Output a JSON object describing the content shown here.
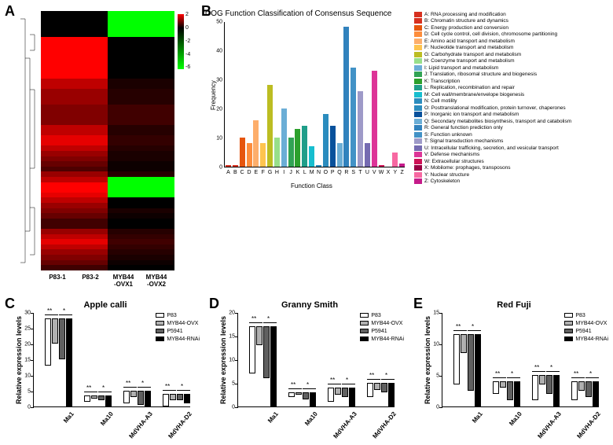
{
  "panel_labels": {
    "A": "A",
    "B": "B",
    "C": "C",
    "D": "D",
    "E": "E"
  },
  "heatmap": {
    "samples": [
      "P83-1",
      "P83-2",
      "MYB44\n-OVX1",
      "MYB44\n-OVX2"
    ],
    "colorbar": {
      "ticks": [
        "2",
        "0",
        "-2",
        "-4",
        "-6"
      ],
      "high": "#ff0000",
      "mid": "#000000",
      "low": "#00ff00"
    },
    "cols": [
      [
        0,
        0,
        0,
        0,
        0,
        2,
        2,
        2,
        2,
        2,
        2,
        2,
        2,
        1.5,
        1.5,
        1.2,
        1.2,
        1.2,
        1.0,
        1.0,
        1.0,
        1.0,
        1.5,
        1.5,
        1.8,
        1.8,
        1.5,
        1.2,
        1.0,
        0.8,
        0.6,
        1.2,
        1.5,
        2,
        2,
        1.8,
        1.5,
        1.2,
        1.0,
        0.8,
        0.5,
        0.5,
        1.2,
        1.5,
        1.8,
        1.5,
        1.2,
        1.0,
        0.8,
        0.5
      ],
      [
        0,
        0,
        0,
        0,
        0,
        2,
        2,
        2,
        2,
        2,
        2,
        2,
        2,
        1.5,
        1.5,
        1.2,
        1.2,
        1.2,
        1.0,
        1.0,
        1.0,
        1.0,
        1.5,
        1.5,
        1.8,
        1.8,
        1.5,
        1.2,
        1.0,
        0.8,
        0.6,
        1.2,
        1.5,
        2,
        2,
        1.8,
        1.5,
        1.2,
        1.0,
        0.8,
        0.5,
        0.5,
        1.2,
        1.5,
        1.8,
        1.5,
        1.2,
        1.0,
        0.8,
        0.5
      ],
      [
        -6,
        -6,
        -6,
        -6,
        -6,
        0,
        0,
        0,
        0,
        0,
        0,
        0,
        0,
        0.2,
        0.2,
        0.3,
        0.3,
        0.3,
        0.5,
        0.5,
        0.5,
        0.5,
        0.3,
        0.3,
        0.4,
        0.4,
        0.3,
        0.2,
        0.2,
        0.1,
        0.1,
        0.3,
        -6,
        -6,
        -6,
        -6,
        0,
        0,
        0.2,
        0.1,
        0.0,
        0.0,
        0.3,
        0.4,
        0.5,
        0.4,
        0.3,
        0.2,
        0.1,
        0.0
      ],
      [
        -6,
        -6,
        -6,
        -6,
        -6,
        0,
        0,
        0,
        0,
        0,
        0,
        0,
        0,
        0.2,
        0.2,
        0.3,
        0.3,
        0.3,
        0.5,
        0.5,
        0.5,
        0.5,
        0.3,
        0.3,
        0.4,
        0.4,
        0.3,
        0.2,
        0.2,
        0.1,
        0.1,
        0.3,
        -6,
        -6,
        -6,
        -6,
        0,
        0,
        0.2,
        0.1,
        0.0,
        0.0,
        0.3,
        0.4,
        0.5,
        0.4,
        0.3,
        0.2,
        0.1,
        0.0
      ]
    ]
  },
  "cog": {
    "title": "COG Function Classification of Consensus Sequence",
    "ylabel": "Frequency",
    "xlabel": "Function Class",
    "ymax": 50,
    "ytick_step": 10,
    "classes": [
      "A",
      "B",
      "C",
      "D",
      "E",
      "F",
      "G",
      "H",
      "I",
      "J",
      "K",
      "L",
      "M",
      "N",
      "O",
      "P",
      "Q",
      "R",
      "S",
      "T",
      "U",
      "V",
      "W",
      "X",
      "Y",
      "Z"
    ],
    "values": [
      0.5,
      0.5,
      10,
      8,
      16,
      8,
      28,
      10,
      20,
      10,
      13,
      14,
      7,
      0.5,
      18,
      14,
      8,
      48,
      34,
      26,
      8,
      33,
      0.5,
      0,
      5,
      1
    ],
    "colors": [
      "#d7301f",
      "#d7301f",
      "#e6550d",
      "#fd8d3c",
      "#fdae6b",
      "#fec44f",
      "#bcbd22",
      "#98df8a",
      "#6baed6",
      "#31a354",
      "#2ca02c",
      "#1f9e89",
      "#17becf",
      "#2b8cbe",
      "#2b8cbe",
      "#08519c",
      "#6baed6",
      "#3182bd",
      "#4292c6",
      "#9e9ac8",
      "#756bb1",
      "#dd3497",
      "#ce1256",
      "#980043",
      "#f768a1",
      "#c51b8a"
    ],
    "legend": [
      "A: RNA processing and modification",
      "B: Chromatin structure and dynamics",
      "C: Energy production and conversion",
      "D: Cell cycle control, cell division, chromosome partitioning",
      "E: Amino acid transport and metabolism",
      "F: Nucleotide transport and metabolism",
      "G: Carbohydrate transport and metabolism",
      "H: Coenzyme transport and metabolism",
      "I: Lipid transport and metabolism",
      "J: Translation, ribosomal structure and biogenesis",
      "K: Transcription",
      "L: Replication, recombination and repair",
      "M: Cell wall/membrane/envelope biogenesis",
      "N: Cell motility",
      "O: Posttranslational modification, protein turnover, chaperones",
      "P: Inorganic ion transport and metabolism",
      "Q: Secondary metabolites biosynthesis, transport and catabolism",
      "R: General function prediction only",
      "S: Function unknown",
      "T: Signal transduction mechanisms",
      "U: Intracellular trafficking, secretion, and vesicular transport",
      "V: Defense mechanisms",
      "W: Extracellular structures",
      "X: Mobilome: prophages, transposons",
      "Y: Nuclear structure",
      "Z: Cytoskeleton"
    ]
  },
  "bar_panels": {
    "legend_series": [
      "P83",
      "MYB44-OVX",
      "P5941",
      "MYB44-RNAi"
    ],
    "series_colors": [
      "#ffffff",
      "#b0b0b0",
      "#606060",
      "#000000"
    ],
    "genes": [
      "Ma1",
      "Ma10",
      "MdVHA-A3",
      "MdVHA-D2"
    ],
    "ylabel": "Relative expression levels",
    "panels": [
      {
        "title": "Apple calli",
        "ymax": 30,
        "ytick_step": 5,
        "data": [
          [
            15,
            8,
            13,
            28
          ],
          [
            2,
            1,
            1.5,
            3.5
          ],
          [
            4,
            2,
            4.5,
            5
          ],
          [
            4,
            2,
            2,
            3
          ]
        ]
      },
      {
        "title": "Granny Smith",
        "ymax": 20,
        "ytick_step": 5,
        "data": [
          [
            10,
            4,
            11,
            17
          ],
          [
            1,
            0.5,
            1.5,
            3
          ],
          [
            3,
            1.5,
            2,
            4
          ],
          [
            3,
            1.5,
            2,
            5
          ]
        ]
      },
      {
        "title": "Red Fuji",
        "ymax": 15,
        "ytick_step": 5,
        "data": [
          [
            8,
            3,
            9,
            11.5
          ],
          [
            2,
            1,
            3,
            4
          ],
          [
            4,
            1.5,
            3,
            5
          ],
          [
            3,
            1.5,
            2.5,
            4
          ]
        ]
      }
    ]
  }
}
